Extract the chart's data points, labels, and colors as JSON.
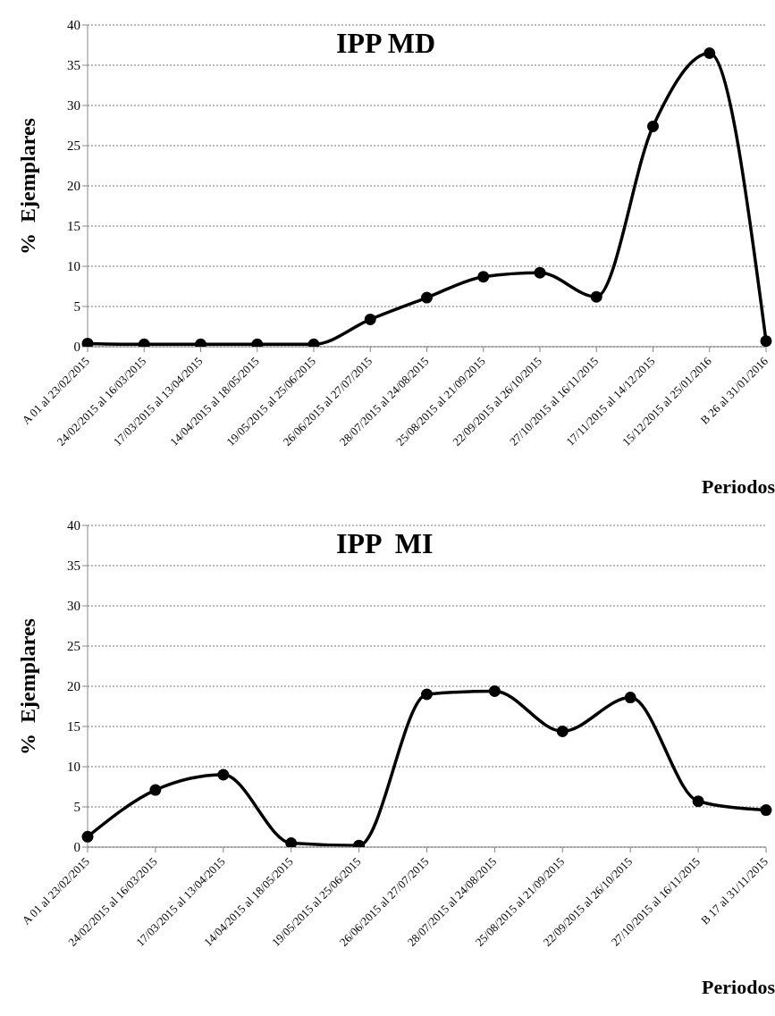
{
  "chart_data": [
    {
      "type": "line",
      "title": "IPP MD",
      "xlabel": "Periodos",
      "ylabel": "%  Ejemplares",
      "categories": [
        "A  01 al 23/02/2015",
        "24/02/2015 al 16/03/2015",
        "17/03/2015  al 13/04/2015",
        "14/04/2015  al 18/05/2015",
        "19/05/2015  al 25/06/2015",
        "26/06/2015  al 27/07/2015",
        "28/07/2015  al 24/08/2015",
        "25/08/2015  al 21/09/2015",
        "22/09/2015  al 26/10/2015",
        "27/10/2015  al 16/11/2015",
        "17/11/2015  al 14/12/2015",
        "15/12/2015  al 25/01/2016",
        "B  26 al 31/01/2016"
      ],
      "series": [
        {
          "color": "#000000",
          "values": [
            0.4,
            0.3,
            0.3,
            0.3,
            0.3,
            3.4,
            6.1,
            8.7,
            9.2,
            6.2,
            27.4,
            36.5,
            0.7
          ]
        }
      ],
      "ylim": [
        0,
        40
      ],
      "yticks": [
        0,
        5,
        10,
        15,
        20,
        25,
        30,
        35,
        40
      ],
      "grid": "y",
      "marker": "circle",
      "line_style": "solid"
    },
    {
      "type": "line",
      "title": "IPP  MI",
      "xlabel": "Periodos",
      "ylabel": "%  Ejemplares",
      "categories": [
        "A  01 al 23/02/2015",
        "24/02/2015 al 16/03/2015",
        "17/03/2015  al 13/04/2015",
        "14/04/2015  al 18/05/2015",
        "19/05/2015  al 25/06/2015",
        "26/06/2015  al 27/07/2015",
        "28/07/2015  al 24/08/2015",
        "25/08/2015  al 21/09/2015",
        "22/09/2015  al 26/10/2015",
        "27/10/2015  al 16/11/2015",
        "B  17  al 31/11/2015"
      ],
      "series": [
        {
          "color": "#000000",
          "values": [
            1.3,
            7.1,
            9.0,
            0.5,
            0.2,
            19.0,
            19.4,
            14.4,
            18.6,
            5.7,
            4.6
          ]
        }
      ],
      "ylim": [
        0,
        40
      ],
      "yticks": [
        0,
        5,
        10,
        15,
        20,
        25,
        30,
        35,
        40
      ],
      "grid": "y",
      "marker": "circle",
      "line_style": "solid"
    }
  ]
}
